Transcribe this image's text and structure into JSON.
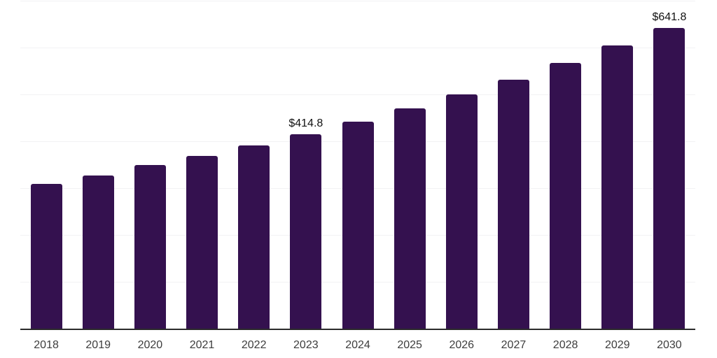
{
  "chart_data": {
    "type": "bar",
    "title": "",
    "xlabel": "",
    "ylabel": "",
    "categories": [
      "2018",
      "2019",
      "2020",
      "2021",
      "2022",
      "2023",
      "2024",
      "2025",
      "2026",
      "2027",
      "2028",
      "2029",
      "2030"
    ],
    "values": [
      309.4,
      327.1,
      350.0,
      368.5,
      391.8,
      414.8,
      442.0,
      470.2,
      499.5,
      531.3,
      566.9,
      604.2,
      641.8
    ],
    "bar_labels": [
      "",
      "",
      "",
      "",
      "",
      "$414.8",
      "",
      "",
      "",
      "",
      "",
      "",
      "$641.8"
    ],
    "unit_prefix": "$",
    "ylim": [
      0,
      700
    ],
    "grid": "horizontal",
    "grid_step": 100,
    "legend": "none",
    "y_axis_labels_visible": false
  },
  "colors": {
    "bar": "#34114F",
    "grid_line": "#f2f2f4",
    "axis_line": "#2b2b2b",
    "x_label_text": "#3d3d3d",
    "data_label_text": "#111111",
    "background": "#ffffff"
  }
}
